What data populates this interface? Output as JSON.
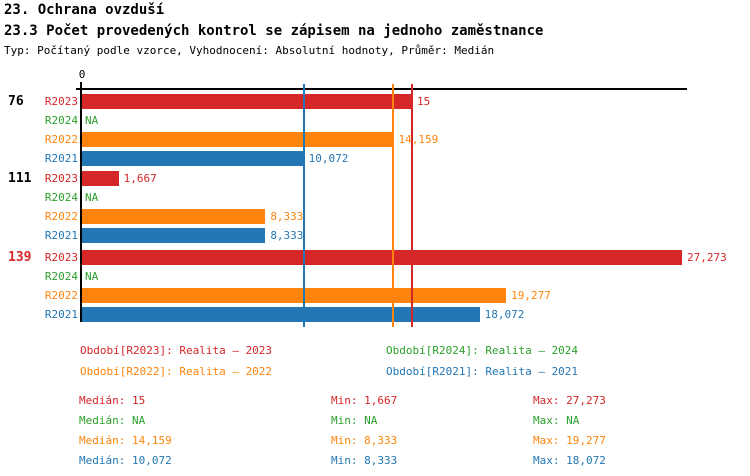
{
  "header": {
    "title_line1": "23. Ochrana ovzduší",
    "title_line2": "23.3 Počet provedených kontrol se zápisem na jednoho zaměstnance",
    "subtitle": "Typ: Počítaný podle vzorce, Vyhodnocení: Absolutní hodnoty, Průměr: Medián"
  },
  "colors": {
    "axis": "#000000",
    "background": "#ffffff",
    "series": {
      "R2023": "#d62728",
      "R2024": "#2ca02c",
      "R2022": "#ff840d",
      "R2021": "#2377b4"
    },
    "group_label_highlight": "#d62728",
    "group_label_default": "#000000"
  },
  "chart_data": {
    "type": "bar",
    "orientation": "horizontal",
    "axis_zero_label": "0",
    "xlim": [
      0,
      27.5
    ],
    "grid": false,
    "series_order": [
      "R2023",
      "R2024",
      "R2022",
      "R2021"
    ],
    "groups": [
      {
        "label": "76",
        "label_color": "#000000",
        "values": {
          "R2023": 15,
          "R2024": null,
          "R2022": 14.159,
          "R2021": 10.072
        },
        "display": {
          "R2023": "15",
          "R2024": "NA",
          "R2022": "14,159",
          "R2021": "10,072"
        }
      },
      {
        "label": "111",
        "label_color": "#000000",
        "values": {
          "R2023": 1.667,
          "R2024": null,
          "R2022": 8.333,
          "R2021": 8.333
        },
        "display": {
          "R2023": "1,667",
          "R2024": "NA",
          "R2022": "8,333",
          "R2021": "8,333"
        }
      },
      {
        "label": "139",
        "label_color": "#d62728",
        "values": {
          "R2023": 27.273,
          "R2024": null,
          "R2022": 19.277,
          "R2021": 18.072
        },
        "display": {
          "R2023": "27,273",
          "R2024": "NA",
          "R2022": "19,277",
          "R2021": "18,072"
        }
      }
    ],
    "median_lines": {
      "R2023": 15,
      "R2022": 14.159,
      "R2021": 10.072
    }
  },
  "legend": [
    {
      "label": "Období[R2023]: Realita – 2023",
      "series": "R2023",
      "row": 0,
      "col": 0
    },
    {
      "label": "Období[R2024]: Realita – 2024",
      "series": "R2024",
      "row": 0,
      "col": 1
    },
    {
      "label": "Období[R2022]: Realita – 2022",
      "series": "R2022",
      "row": 1,
      "col": 0
    },
    {
      "label": "Období[R2021]: Realita – 2021",
      "series": "R2021",
      "row": 1,
      "col": 1
    }
  ],
  "stats": [
    {
      "series": "R2023",
      "median": "Medián: 15",
      "min": "Min: 1,667",
      "max": "Max: 27,273"
    },
    {
      "series": "R2024",
      "median": "Medián: NA",
      "min": "Min: NA",
      "max": "Max: NA"
    },
    {
      "series": "R2022",
      "median": "Medián: 14,159",
      "min": "Min: 8,333",
      "max": "Max: 19,277"
    },
    {
      "series": "R2021",
      "median": "Medián: 10,072",
      "min": "Min: 8,333",
      "max": "Max: 18,072"
    }
  ]
}
